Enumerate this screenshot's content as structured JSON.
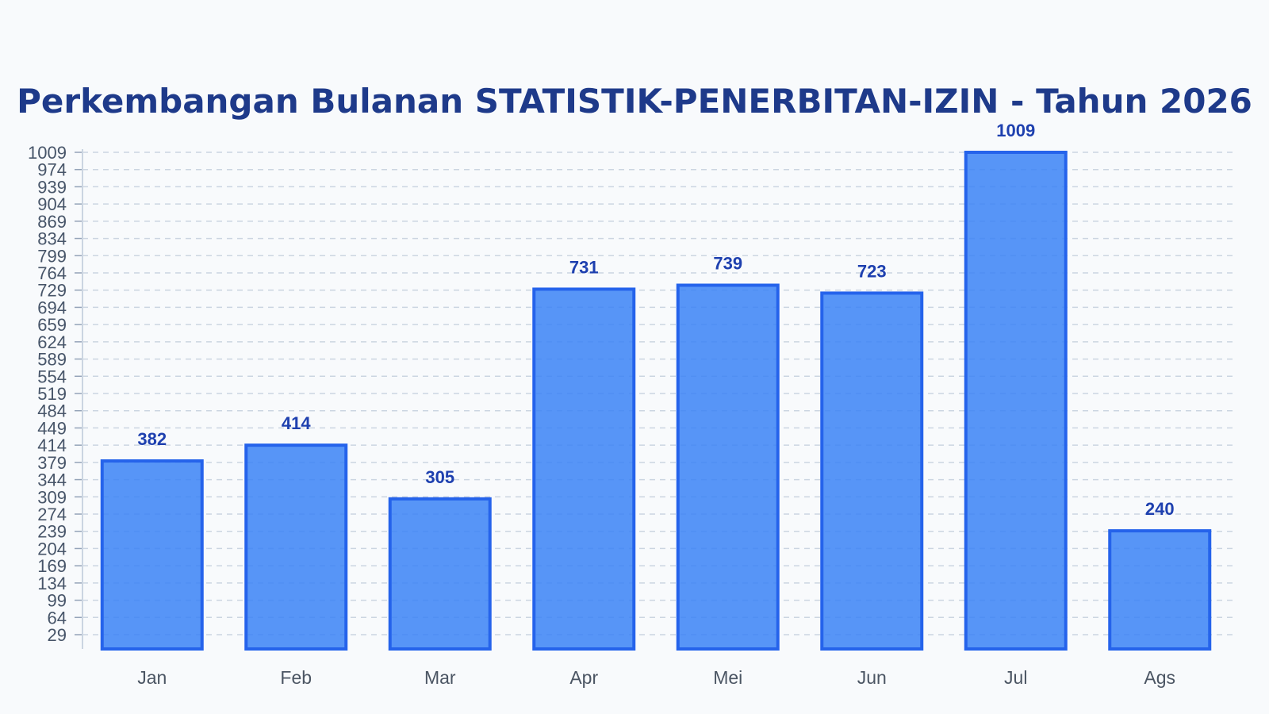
{
  "chart_data": {
    "type": "bar",
    "title": "Perkembangan Bulanan STATISTIK-PENERBITAN-IZIN - Tahun 2026",
    "categories": [
      "Jan",
      "Feb",
      "Mar",
      "Apr",
      "Mei",
      "Jun",
      "Jul",
      "Ags"
    ],
    "values": [
      382,
      414,
      305,
      731,
      739,
      723,
      1009,
      240
    ],
    "y_ticks": [
      29,
      64,
      99,
      134,
      169,
      204,
      239,
      274,
      309,
      344,
      379,
      414,
      449,
      484,
      519,
      554,
      589,
      624,
      659,
      694,
      729,
      764,
      799,
      834,
      869,
      904,
      939,
      974,
      1009
    ],
    "ylim": [
      0,
      1009
    ],
    "xlabel": "",
    "ylabel": "",
    "grid": true,
    "data_labels": true,
    "colors": {
      "bar_fill": "#3b82f6",
      "bar_stroke": "#2563eb",
      "label": "#1e40af",
      "title": "#1e3a8a",
      "grid": "#cbd5e1"
    }
  }
}
